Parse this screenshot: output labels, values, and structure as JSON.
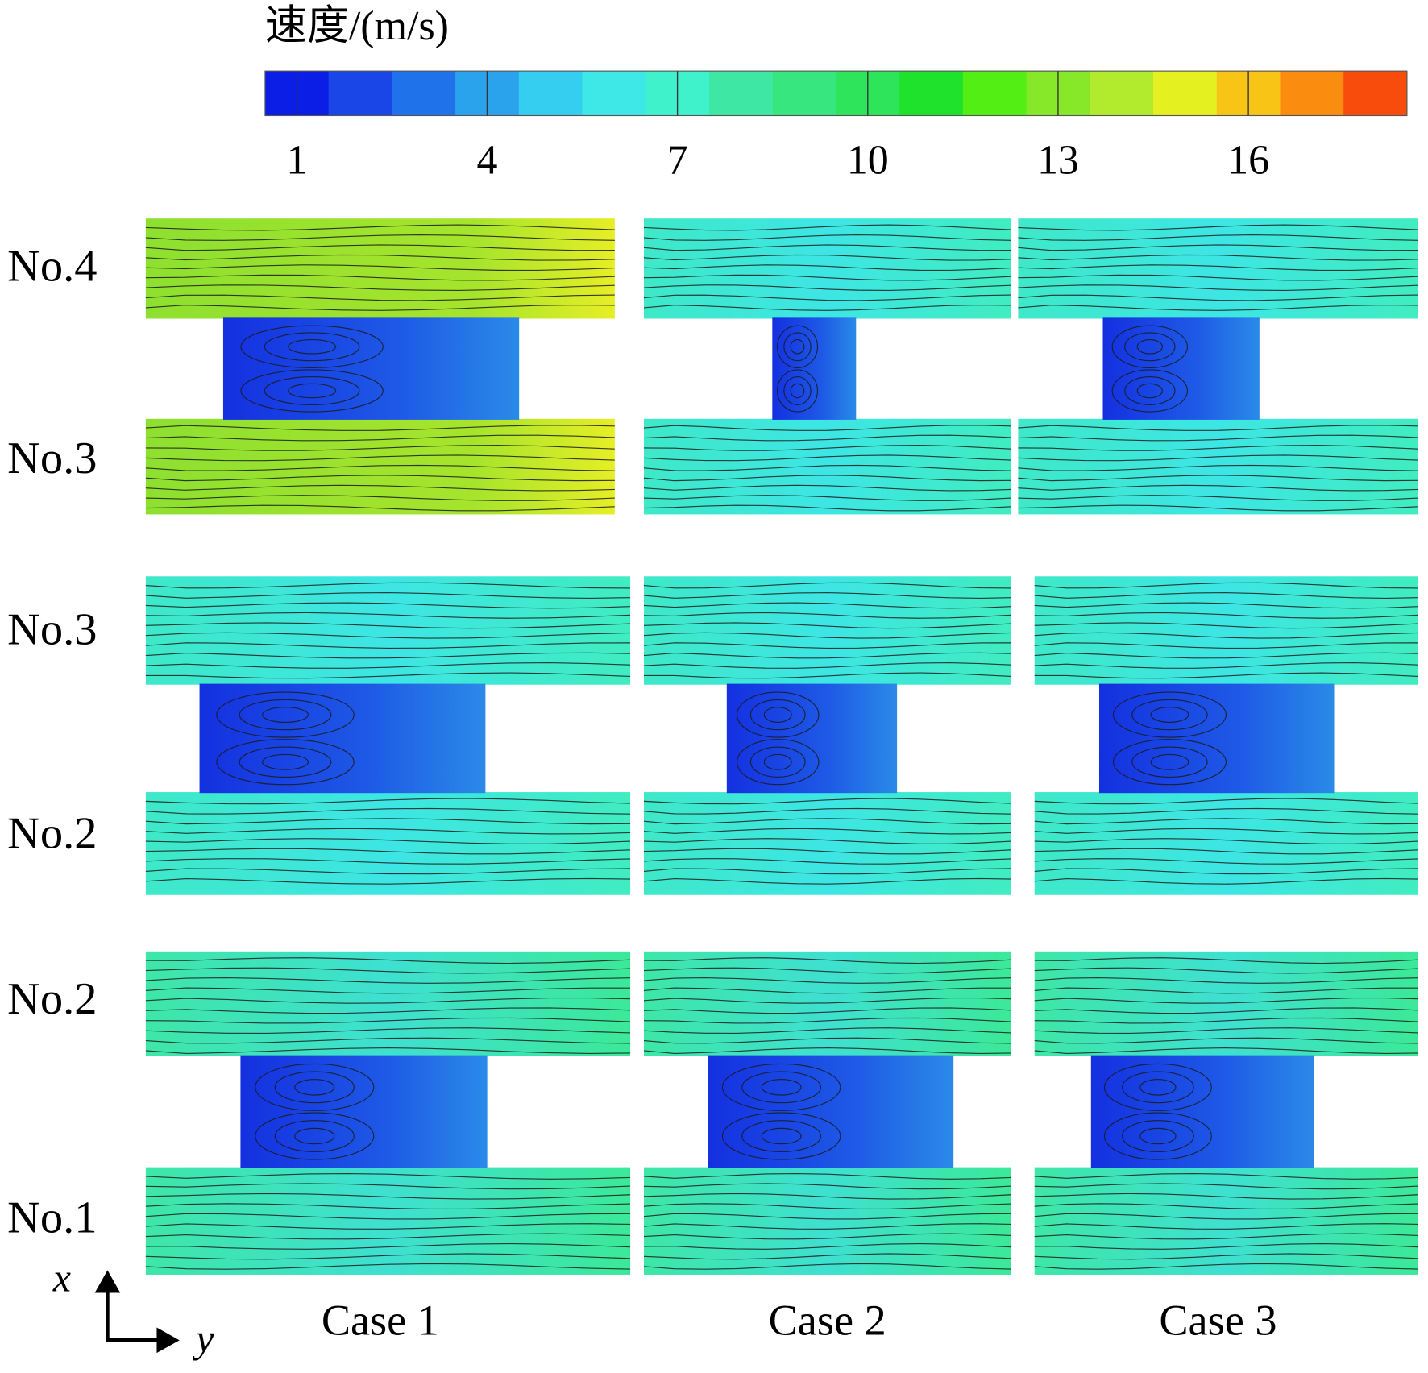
{
  "colorbar": {
    "title": "速度/(m/s)",
    "range": [
      0.5,
      18.5
    ],
    "ticks": [
      1,
      4,
      7,
      10,
      13,
      16
    ],
    "colors": [
      "#0a1ee6",
      "#1a46e8",
      "#1f72ea",
      "#2aa2ec",
      "#35cdf0",
      "#3de8e6",
      "#40f2cc",
      "#3ee8a4",
      "#38e680",
      "#2de45a",
      "#1ee22c",
      "#52ee14",
      "#86e828",
      "#b2ea2e",
      "#e4f020",
      "#f8c416",
      "#fa8c10",
      "#f84c0c"
    ]
  },
  "rows": [
    {
      "labels": [
        "No.4",
        "No.3"
      ]
    },
    {
      "labels": [
        "No.3",
        "No.2"
      ]
    },
    {
      "labels": [
        "No.2",
        "No.1"
      ]
    }
  ],
  "cases": [
    "Case 1",
    "Case 2",
    "Case 3"
  ],
  "axes": {
    "x": "x",
    "y": "y"
  }
}
